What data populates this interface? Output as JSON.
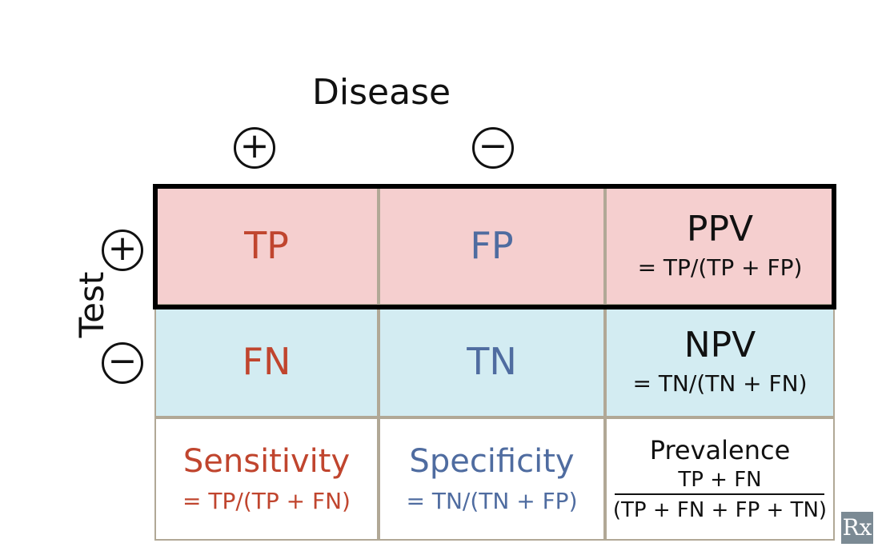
{
  "header": {
    "title": "Disease",
    "disease_positive": "+",
    "disease_negative": "−"
  },
  "side": {
    "title": "Test",
    "test_positive": "+",
    "test_negative": "−"
  },
  "matrix": {
    "tp": "TP",
    "fp": "FP",
    "fn": "FN",
    "tn": "TN",
    "ppv": {
      "name": "PPV",
      "formula": "= TP/(TP + FP)"
    },
    "npv": {
      "name": "NPV",
      "formula": "= TN/(TN + FN)"
    }
  },
  "metrics": {
    "sensitivity": {
      "name": "Sensitivity",
      "formula": "= TP/(TP + FN)"
    },
    "specificity": {
      "name": "Specificity",
      "formula": "= TN/(TN + FP)"
    },
    "prevalence": {
      "name": "Prevalence",
      "numerator": "TP + FN",
      "denominator": "(TP + FN + FP + TN)"
    }
  },
  "colors": {
    "positive_row": "#f5cfcf",
    "negative_row": "#d3ecf2",
    "red_text": "#c0452e",
    "blue_text": "#4f6ca0",
    "cell_border": "#b1a896"
  },
  "brand": {
    "logo_text": "Rx"
  }
}
